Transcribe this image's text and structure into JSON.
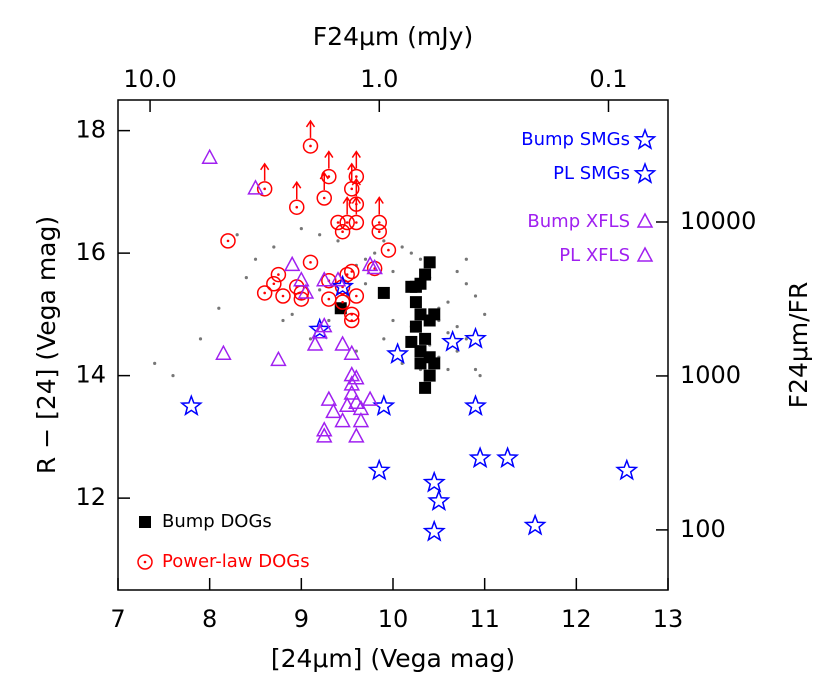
{
  "chart_data": {
    "type": "scatter",
    "xlabel": "[24μm] (Vega mag)",
    "ylabel": "R − [24] (Vega mag)",
    "x2label": "F24μm (mJy)",
    "y2label": "F24μm/FR",
    "xlim": [
      7,
      13
    ],
    "xticks": [
      7,
      8,
      9,
      10,
      11,
      12,
      13
    ],
    "ylim": [
      10.5,
      18.5
    ],
    "yticks": [
      12,
      14,
      16,
      18
    ],
    "x2lim": [
      13.8,
      0.055
    ],
    "x2scale": "log",
    "x2ticks": [
      {
        "value": 10,
        "label": "10.0"
      },
      {
        "value": 1,
        "label": "1.0"
      },
      0.1
    ],
    "y2lim": [
      40.7,
      62000
    ],
    "y2scale": "log",
    "y2ticks": [
      100,
      1000,
      10000
    ],
    "series": [
      {
        "color": "#777777",
        "marker": "dot",
        "x": [
          8.3,
          8.5,
          8.7,
          8.9,
          9.0,
          9.1,
          9.2,
          9.3,
          9.4,
          9.5,
          9.6,
          9.7,
          9.8,
          9.9,
          10.0,
          10.1,
          10.2,
          10.3,
          10.4,
          10.5,
          10.6,
          10.7,
          10.8,
          10.9,
          11.0,
          7.4,
          7.6,
          7.9,
          8.1,
          8.4,
          8.8,
          9.2,
          9.6,
          10.0,
          10.4,
          10.8,
          10.6,
          10.7,
          10.9,
          10.5,
          10.3,
          10.1,
          9.9,
          9.7,
          10.2,
          10.6,
          10.8,
          10.95,
          10.5,
          10.7
        ],
        "y": [
          16.3,
          15.9,
          16.1,
          15.0,
          16.4,
          14.6,
          16.3,
          14.9,
          16.2,
          15.3,
          14.4,
          15.9,
          16.0,
          14.6,
          15.7,
          14.2,
          16.0,
          14.1,
          15.6,
          14.3,
          15.2,
          14.8,
          15.5,
          14.1,
          15.0,
          14.2,
          14.0,
          14.6,
          15.1,
          15.6,
          14.9,
          15.4,
          15.8,
          14.9,
          14.5,
          15.9,
          14.7,
          14.4,
          15.3,
          15.1,
          15.9,
          16.1,
          16.2,
          15.5,
          14.8,
          14.1,
          14.6,
          14.0,
          14.9,
          15.7
        ]
      },
      {
        "name": "Bump DOGs",
        "color": "#000000",
        "marker": "square",
        "legend": "lower left",
        "x": [
          9.43,
          9.9,
          10.2,
          10.3,
          10.35,
          10.4,
          10.25,
          10.3,
          10.25,
          10.4,
          10.35,
          10.3,
          10.4,
          10.3,
          10.4,
          10.35,
          10.45,
          10.2,
          10.45,
          10.25
        ],
        "y": [
          15.1,
          15.35,
          15.45,
          15.5,
          15.65,
          15.85,
          15.2,
          15.0,
          14.8,
          14.9,
          14.6,
          14.4,
          14.3,
          14.2,
          14.0,
          13.8,
          15.0,
          14.55,
          14.2,
          15.45
        ]
      },
      {
        "name": "Power-law DOGs",
        "color": "#ff0000",
        "marker": "circle",
        "legend": "lower left",
        "x": [
          9.1,
          9.3,
          9.6,
          9.55,
          9.6,
          8.6,
          8.95,
          9.25,
          9.5,
          9.4,
          9.45,
          9.6,
          9.85,
          9.85,
          9.95,
          8.2,
          9.1,
          8.75,
          8.7,
          8.6,
          8.8,
          8.95,
          9.0,
          9.3,
          9.45,
          9.5,
          9.55,
          9.6,
          9.55,
          9.55,
          9.45,
          9.8,
          9.3,
          9.0
        ],
        "y": [
          17.75,
          17.25,
          17.25,
          17.05,
          16.8,
          17.05,
          16.75,
          16.9,
          16.5,
          16.5,
          16.35,
          16.5,
          16.5,
          16.35,
          16.05,
          16.2,
          15.85,
          15.65,
          15.5,
          15.35,
          15.3,
          15.45,
          15.35,
          15.55,
          15.45,
          15.65,
          15.7,
          15.3,
          15.0,
          14.9,
          15.2,
          15.75,
          15.25,
          15.25
        ],
        "lower_limits": [
          true,
          true,
          true,
          true,
          true,
          true,
          true,
          true,
          true,
          false,
          false,
          true,
          true,
          false,
          false,
          false,
          false,
          false,
          false,
          false,
          false,
          false,
          false,
          false,
          false,
          false,
          false,
          false,
          false,
          false,
          false,
          false,
          false,
          false
        ]
      },
      {
        "name": "Bump SMGs",
        "color": "#0000ff",
        "marker": "star",
        "legend": "upper right",
        "x": [
          7.8,
          9.2,
          9.45,
          9.9,
          10.05,
          10.65,
          10.9,
          10.9
        ],
        "y": [
          13.5,
          14.75,
          15.45,
          13.5,
          14.35,
          14.55,
          14.6,
          13.5
        ]
      },
      {
        "name": "PL SMGs",
        "color": "#0000ff",
        "marker": "star",
        "legend": "upper right",
        "x": [
          9.85,
          10.45,
          10.5,
          10.45,
          10.95,
          11.25,
          11.55,
          12.55
        ],
        "y": [
          12.45,
          12.25,
          11.95,
          11.45,
          12.65,
          12.65,
          11.55,
          12.45
        ]
      },
      {
        "name": "Bump XFLS",
        "color": "#a020f0",
        "marker": "triangle",
        "legend": "upper right",
        "x": [
          8.0,
          8.5,
          8.9,
          9.0,
          9.05,
          9.25,
          9.4,
          9.75,
          9.8,
          8.15,
          8.75,
          9.2,
          9.25,
          9.15,
          9.45
        ],
        "y": [
          17.55,
          17.05,
          15.8,
          15.55,
          15.35,
          15.55,
          15.55,
          15.8,
          15.75,
          14.35,
          14.25,
          14.7,
          14.8,
          14.5,
          14.5
        ]
      },
      {
        "name": "PL XFLS",
        "color": "#a020f0",
        "marker": "triangle",
        "legend": "upper right",
        "x": [
          9.55,
          9.55,
          9.55,
          9.6,
          9.55,
          9.6,
          9.5,
          9.35,
          9.3,
          9.45,
          9.65,
          9.75,
          9.25,
          9.25,
          9.6,
          9.65
        ],
        "y": [
          14.35,
          14.0,
          13.85,
          13.95,
          13.7,
          13.55,
          13.5,
          13.4,
          13.6,
          13.25,
          13.45,
          13.6,
          13.1,
          13.0,
          13.0,
          13.25
        ]
      }
    ]
  }
}
